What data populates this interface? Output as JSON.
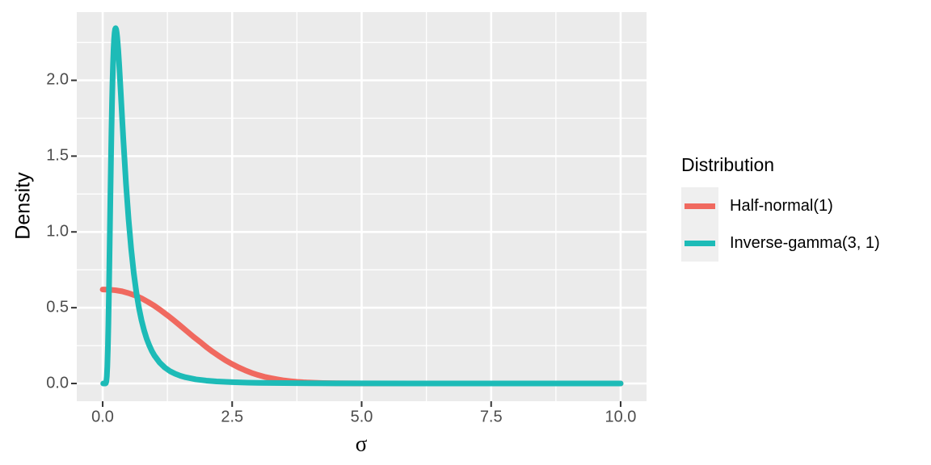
{
  "colors": {
    "background": "#FFFFFF",
    "panel_background": "#EBEBEB",
    "grid_major": "#FFFFFF",
    "grid_minor": "#FFFFFF",
    "tick_mark": "#333333",
    "tick_label": "#4D4D4D",
    "axis_title": "#000000",
    "legend_key_background": "#EFEFEF",
    "halfnormal_color": "#F0695F",
    "inversegamma_color": "#1DBBB7"
  },
  "chart_data": {
    "type": "line",
    "title": "",
    "xlabel": "σ",
    "ylabel": "Density",
    "xlim": [
      -0.5,
      10.5
    ],
    "ylim": [
      -0.117,
      2.45
    ],
    "grid": true,
    "x_ticks": {
      "values": [
        0,
        2.5,
        5,
        7.5,
        10
      ],
      "labels": [
        "0.0",
        "2.5",
        "5.0",
        "7.5",
        "10.0"
      ]
    },
    "y_ticks": {
      "values": [
        0,
        0.5,
        1,
        1.5,
        2
      ],
      "labels": [
        "0.0",
        "0.5",
        "1.0",
        "1.5",
        "2.0"
      ]
    },
    "x_minor": [
      1.25,
      3.75,
      6.25,
      8.75
    ],
    "y_minor": [
      0.25,
      0.75,
      1.25,
      1.75,
      2.25
    ],
    "legend_position": "right",
    "legend": {
      "title": "Distribution",
      "items": [
        {
          "label": "Half-normal(1)",
          "color": "#F0695F"
        },
        {
          "label": "Inverse-gamma(3, 1)",
          "color": "#1DBBB7"
        }
      ]
    },
    "series": [
      {
        "name": "Half-normal(1)",
        "color": "#F0695F",
        "points": [
          [
            0,
            0.62
          ],
          [
            0.125,
            0.619
          ],
          [
            0.25,
            0.615
          ],
          [
            0.375,
            0.608
          ],
          [
            0.5,
            0.596
          ],
          [
            0.625,
            0.581
          ],
          [
            0.75,
            0.562
          ],
          [
            0.875,
            0.538
          ],
          [
            1.0,
            0.512
          ],
          [
            1.125,
            0.482
          ],
          [
            1.25,
            0.45
          ],
          [
            1.375,
            0.416
          ],
          [
            1.5,
            0.381
          ],
          [
            1.625,
            0.345
          ],
          [
            1.75,
            0.309
          ],
          [
            1.875,
            0.276
          ],
          [
            2.0,
            0.241
          ],
          [
            2.125,
            0.209
          ],
          [
            2.25,
            0.18
          ],
          [
            2.375,
            0.152
          ],
          [
            2.5,
            0.128
          ],
          [
            2.625,
            0.106
          ],
          [
            2.75,
            0.087
          ],
          [
            2.875,
            0.07
          ],
          [
            3.0,
            0.056
          ],
          [
            3.125,
            0.044
          ],
          [
            3.25,
            0.035
          ],
          [
            3.375,
            0.027
          ],
          [
            3.5,
            0.02
          ],
          [
            3.625,
            0.015
          ],
          [
            3.75,
            0.011
          ],
          [
            3.875,
            0.008
          ],
          [
            4.0,
            0.006
          ],
          [
            4.25,
            0.003
          ],
          [
            4.5,
            0.0015
          ],
          [
            4.75,
            0.001
          ],
          [
            5.0,
            0.0005
          ],
          [
            5.5,
            0.0002
          ],
          [
            6.0,
            0.0001
          ],
          [
            7.0,
            5e-05
          ],
          [
            8.0,
            3e-05
          ],
          [
            9.0,
            2e-05
          ],
          [
            10.0,
            1e-05
          ]
        ]
      },
      {
        "name": "Inverse-gamma(3, 1)",
        "color": "#1DBBB7",
        "points": [
          [
            0.01,
            0
          ],
          [
            0.05,
            0.0001
          ],
          [
            0.06,
            0.002
          ],
          [
            0.07,
            0.013
          ],
          [
            0.08,
            0.046
          ],
          [
            0.09,
            0.114
          ],
          [
            0.1,
            0.227
          ],
          [
            0.11,
            0.384
          ],
          [
            0.12,
            0.581
          ],
          [
            0.13,
            0.798
          ],
          [
            0.14,
            1.028
          ],
          [
            0.15,
            1.254
          ],
          [
            0.16,
            1.472
          ],
          [
            0.17,
            1.67
          ],
          [
            0.18,
            1.839
          ],
          [
            0.19,
            1.988
          ],
          [
            0.2,
            2.106
          ],
          [
            0.21,
            2.201
          ],
          [
            0.22,
            2.269
          ],
          [
            0.23,
            2.312
          ],
          [
            0.24,
            2.337
          ],
          [
            0.25,
            2.344
          ],
          [
            0.26,
            2.337
          ],
          [
            0.27,
            2.317
          ],
          [
            0.28,
            2.287
          ],
          [
            0.3,
            2.203
          ],
          [
            0.32,
            2.096
          ],
          [
            0.35,
            1.913
          ],
          [
            0.38,
            1.724
          ],
          [
            0.4,
            1.603
          ],
          [
            0.45,
            1.32
          ],
          [
            0.5,
            1.083
          ],
          [
            0.55,
            0.888
          ],
          [
            0.6,
            0.729
          ],
          [
            0.65,
            0.602
          ],
          [
            0.7,
            0.499
          ],
          [
            0.75,
            0.417
          ],
          [
            0.8,
            0.35
          ],
          [
            0.85,
            0.295
          ],
          [
            0.9,
            0.251
          ],
          [
            0.95,
            0.214
          ],
          [
            1.0,
            0.184
          ],
          [
            1.1,
            0.138
          ],
          [
            1.2,
            0.105
          ],
          [
            1.3,
            0.081
          ],
          [
            1.4,
            0.064
          ],
          [
            1.5,
            0.051
          ],
          [
            1.6,
            0.041
          ],
          [
            1.8,
            0.027
          ],
          [
            2.0,
            0.019
          ],
          [
            2.2,
            0.0135
          ],
          [
            2.5,
            0.0086
          ],
          [
            2.8,
            0.0057
          ],
          [
            3.0,
            0.0044
          ],
          [
            3.5,
            0.0025
          ],
          [
            4.0,
            0.0015
          ],
          [
            4.5,
            0.001
          ],
          [
            5.0,
            0.0007
          ],
          [
            6.0,
            0.0003
          ],
          [
            7.0,
            0.0002
          ],
          [
            8.0,
            0.0001
          ],
          [
            9.0,
            7e-05
          ],
          [
            10.0,
            5e-05
          ]
        ]
      }
    ]
  }
}
